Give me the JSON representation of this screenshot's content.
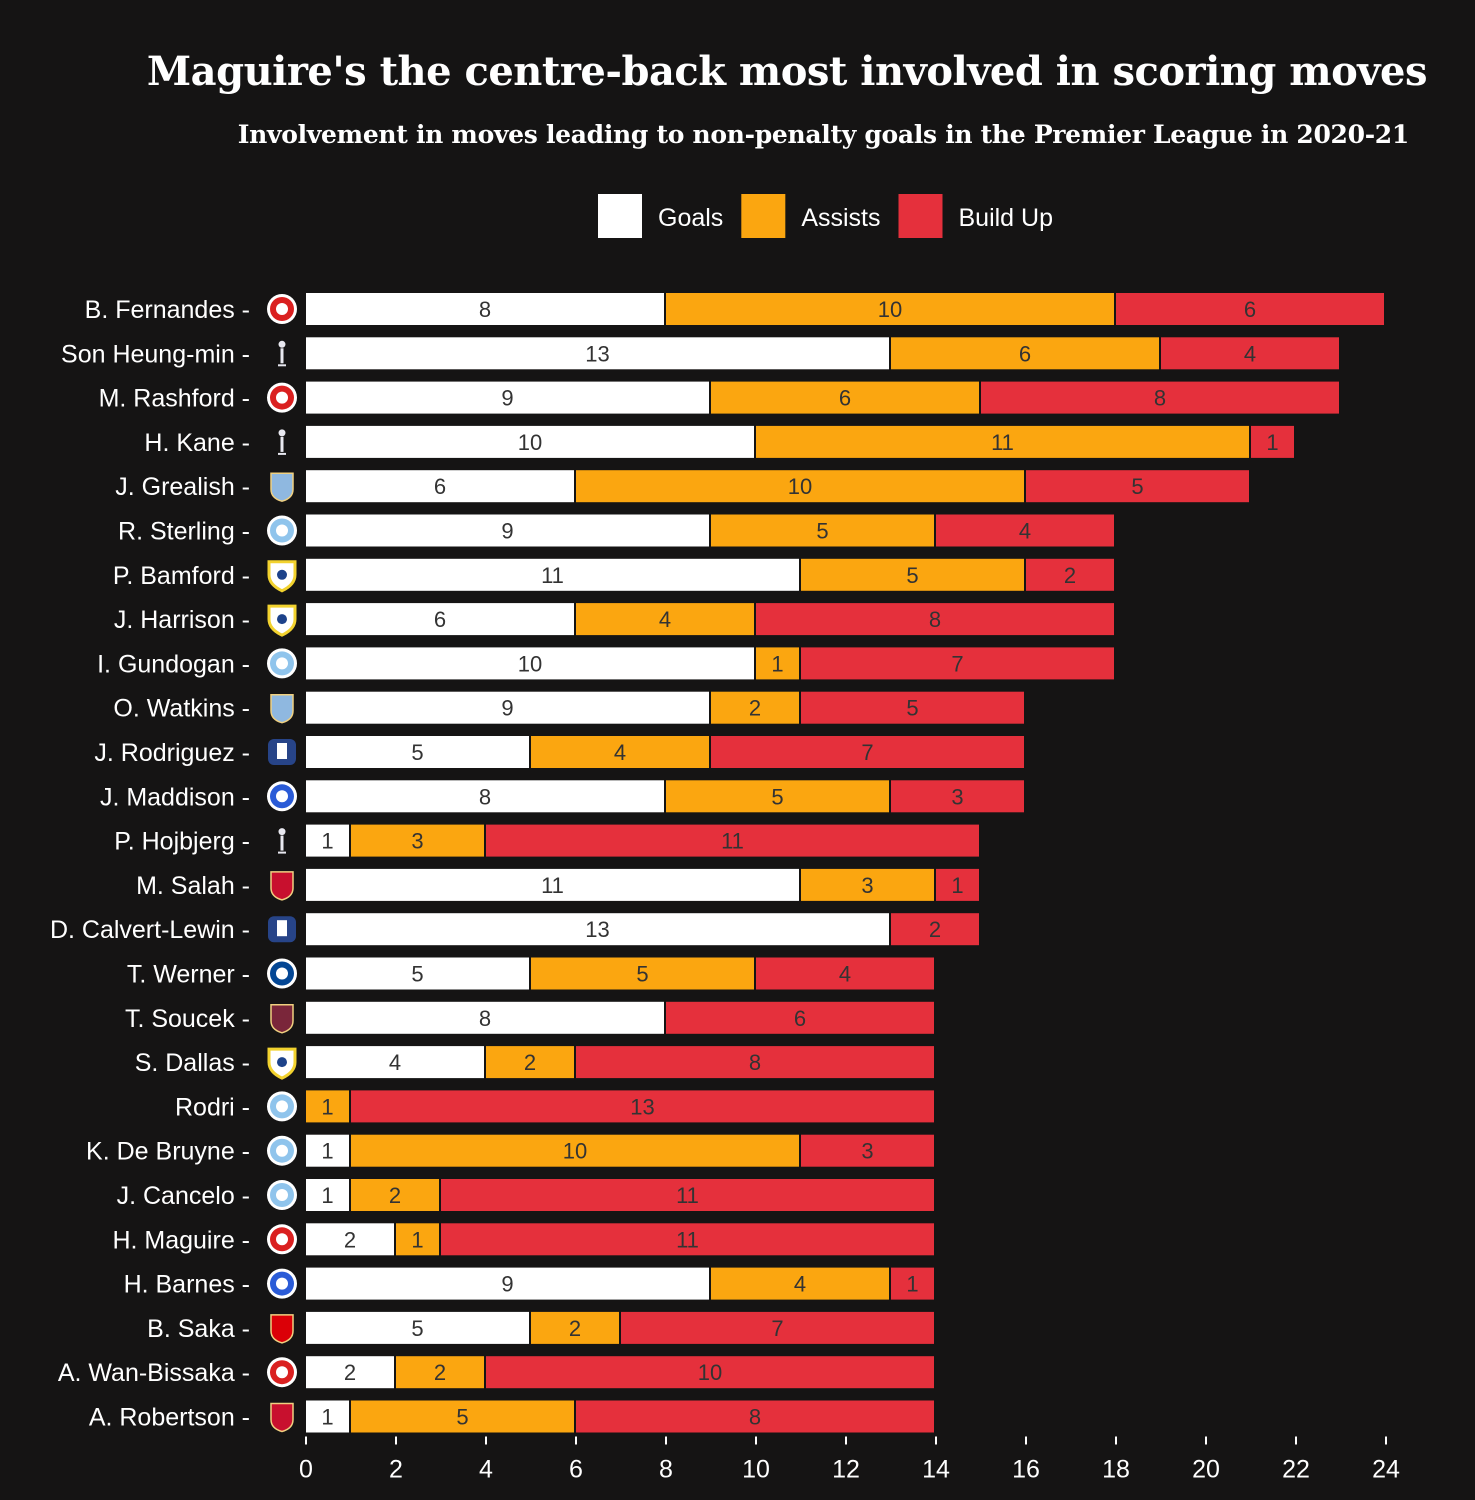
{
  "chart_data": {
    "type": "bar",
    "orientation": "horizontal",
    "stacked": true,
    "title": "Maguire's the centre-back most involved in scoring moves",
    "subtitle": "Involvement in moves leading to non-penalty goals in the Premier League in 2020-21",
    "xlim": [
      0,
      24
    ],
    "x_ticks": [
      0,
      2,
      4,
      6,
      8,
      10,
      12,
      14,
      16,
      18,
      20,
      22,
      24
    ],
    "legend_position": "top-center",
    "grid": false,
    "categories": [
      "B. Fernandes",
      "Son Heung-min",
      "M. Rashford",
      "H. Kane",
      "J. Grealish",
      "R. Sterling",
      "P. Bamford",
      "J. Harrison",
      "I. Gundogan",
      "O. Watkins",
      "J. Rodriguez",
      "J. Maddison",
      "P. Hojbjerg",
      "M. Salah",
      "D. Calvert-Lewin",
      "T. Werner",
      "T. Soucek",
      "S. Dallas",
      "Rodri",
      "K. De Bruyne",
      "J. Cancelo",
      "H. Maguire",
      "H. Barnes",
      "B. Saka",
      "A. Wan-Bissaka",
      "A. Robertson"
    ],
    "clubs": [
      "man-utd",
      "tottenham",
      "man-utd",
      "tottenham",
      "aston-villa",
      "man-city",
      "leeds",
      "leeds",
      "man-city",
      "aston-villa",
      "everton",
      "leicester",
      "tottenham",
      "liverpool",
      "everton",
      "chelsea",
      "west-ham",
      "leeds",
      "man-city",
      "man-city",
      "man-city",
      "man-utd",
      "leicester",
      "arsenal",
      "man-utd",
      "liverpool"
    ],
    "series": [
      {
        "name": "Goals",
        "color": "#ffffff",
        "text_color": "#333333",
        "values": [
          8,
          13,
          9,
          10,
          6,
          9,
          11,
          6,
          10,
          9,
          5,
          8,
          1,
          11,
          13,
          5,
          8,
          4,
          0,
          1,
          1,
          2,
          9,
          5,
          2,
          1
        ]
      },
      {
        "name": "Assists",
        "color": "#fba610",
        "text_color": "#333333",
        "values": [
          10,
          6,
          6,
          11,
          10,
          5,
          5,
          4,
          1,
          2,
          4,
          5,
          3,
          3,
          0,
          5,
          0,
          2,
          1,
          10,
          2,
          1,
          4,
          2,
          2,
          5
        ]
      },
      {
        "name": "Build Up",
        "color": "#e5303c",
        "text_color": "#333333",
        "values": [
          6,
          4,
          8,
          1,
          5,
          4,
          2,
          8,
          7,
          5,
          7,
          3,
          11,
          1,
          2,
          4,
          6,
          8,
          13,
          3,
          11,
          11,
          1,
          7,
          10,
          8
        ]
      }
    ]
  },
  "club_icons": {
    "man-utd": {
      "icon": "man-utd-crest-icon",
      "color": "#da2020"
    },
    "tottenham": {
      "icon": "tottenham-cockerel-icon",
      "color": "#e8e8f0"
    },
    "aston-villa": {
      "icon": "aston-villa-crest-icon",
      "color": "#8fb8e0"
    },
    "man-city": {
      "icon": "man-city-crest-icon",
      "color": "#8fc4ec"
    },
    "leeds": {
      "icon": "leeds-crest-icon",
      "color": "#f2d22e"
    },
    "everton": {
      "icon": "everton-crest-icon",
      "color": "#274488"
    },
    "leicester": {
      "icon": "leicester-crest-icon",
      "color": "#2a5bd7"
    },
    "liverpool": {
      "icon": "liverpool-crest-icon",
      "color": "#c8102e"
    },
    "chelsea": {
      "icon": "chelsea-crest-icon",
      "color": "#034694"
    },
    "west-ham": {
      "icon": "west-ham-crest-icon",
      "color": "#7a263a"
    },
    "arsenal": {
      "icon": "arsenal-crest-icon",
      "color": "#db0007"
    }
  }
}
